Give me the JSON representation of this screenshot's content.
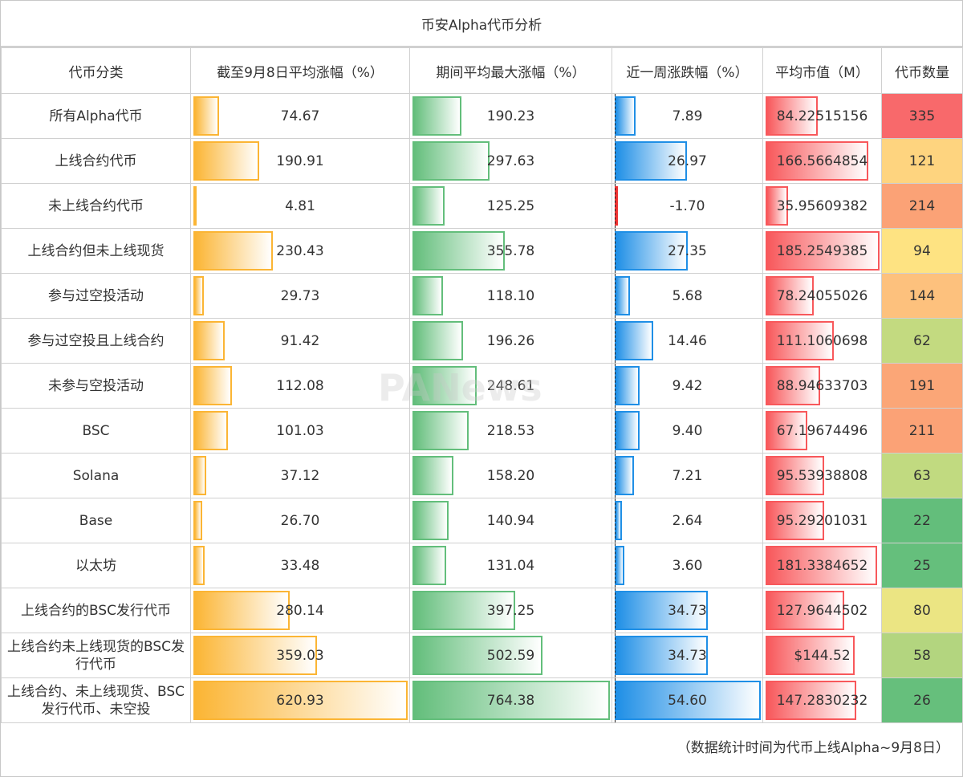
{
  "title": "币安Alpha代币分析",
  "footer": "（数据统计时间为代币上线Alpha~9月8日）",
  "watermark": "PANews",
  "headers": [
    "代币分类",
    "截至9月8日平均涨幅（%）",
    "期间平均最大涨幅（%）",
    "近一周涨跌幅（%）",
    "平均市值（M）",
    "代币数量"
  ],
  "bar_colors": [
    "#fbb534",
    "#63be7b",
    "#1f8fe6",
    "#f8585b"
  ],
  "bar_max": [
    620.93,
    764.38,
    54.6,
    185.2549385
  ],
  "chart_data": {
    "type": "table",
    "title": "币安Alpha代币分析",
    "rows": [
      {
        "category": "所有Alpha代币",
        "avg_gain": "74.67",
        "avg_max_gain": "190.23",
        "week_change": "7.89",
        "avg_mcap": "84.22515156",
        "count": "335",
        "count_color": "#f8696b"
      },
      {
        "category": "上线合约代币",
        "avg_gain": "190.91",
        "avg_max_gain": "297.63",
        "week_change": "26.97",
        "avg_mcap": "166.5664854",
        "count": "121",
        "count_color": "#fed47f"
      },
      {
        "category": "未上线合约代币",
        "avg_gain": "4.81",
        "avg_max_gain": "125.25",
        "week_change": "-1.70",
        "avg_mcap": "35.95609382",
        "count": "214",
        "count_color": "#fba276"
      },
      {
        "category": "上线合约但未上线现货",
        "avg_gain": "230.43",
        "avg_max_gain": "355.78",
        "week_change": "27.35",
        "avg_mcap": "185.2549385",
        "count": "94",
        "count_color": "#fee382"
      },
      {
        "category": "参与过空投活动",
        "avg_gain": "29.73",
        "avg_max_gain": "118.10",
        "week_change": "5.68",
        "avg_mcap": "78.24055026",
        "count": "144",
        "count_color": "#fdc17d"
      },
      {
        "category": "参与过空投且上线合约",
        "avg_gain": "91.42",
        "avg_max_gain": "196.26",
        "week_change": "14.46",
        "avg_mcap": "111.1060698",
        "count": "62",
        "count_color": "#c3da80"
      },
      {
        "category": "未参与空投活动",
        "avg_gain": "112.08",
        "avg_max_gain": "248.61",
        "week_change": "9.42",
        "avg_mcap": "88.94633703",
        "count": "191",
        "count_color": "#fba677"
      },
      {
        "category": "BSC",
        "avg_gain": "101.03",
        "avg_max_gain": "218.53",
        "week_change": "9.40",
        "avg_mcap": "67.19674496",
        "count": "211",
        "count_color": "#fba276"
      },
      {
        "category": "Solana",
        "avg_gain": "37.12",
        "avg_max_gain": "158.20",
        "week_change": "7.21",
        "avg_mcap": "95.53938808",
        "count": "63",
        "count_color": "#c1da80"
      },
      {
        "category": "Base",
        "avg_gain": "26.70",
        "avg_max_gain": "140.94",
        "week_change": "2.64",
        "avg_mcap": "95.29201031",
        "count": "22",
        "count_color": "#63be7b"
      },
      {
        "category": "以太坊",
        "avg_gain": "33.48",
        "avg_max_gain": "131.04",
        "week_change": "3.60",
        "avg_mcap": "181.3384652",
        "count": "25",
        "count_color": "#65bf7c"
      },
      {
        "category": "上线合约的BSC发行代币",
        "avg_gain": "280.14",
        "avg_max_gain": "397.25",
        "week_change": "34.73",
        "avg_mcap": "127.9644502",
        "count": "80",
        "count_color": "#ebe583"
      },
      {
        "category": "上线合约未上线现货的BSC发行代币",
        "avg_gain": "359.03",
        "avg_max_gain": "502.59",
        "week_change": "34.73",
        "avg_mcap": "$144.52",
        "count": "58",
        "count_color": "#b3d57f"
      },
      {
        "category": "上线合约、未上线现货、BSC发行代币、未空投",
        "avg_gain": "620.93",
        "avg_max_gain": "764.38",
        "week_change": "54.60",
        "avg_mcap": "147.2830232",
        "count": "26",
        "count_color": "#66bf7c"
      }
    ]
  }
}
